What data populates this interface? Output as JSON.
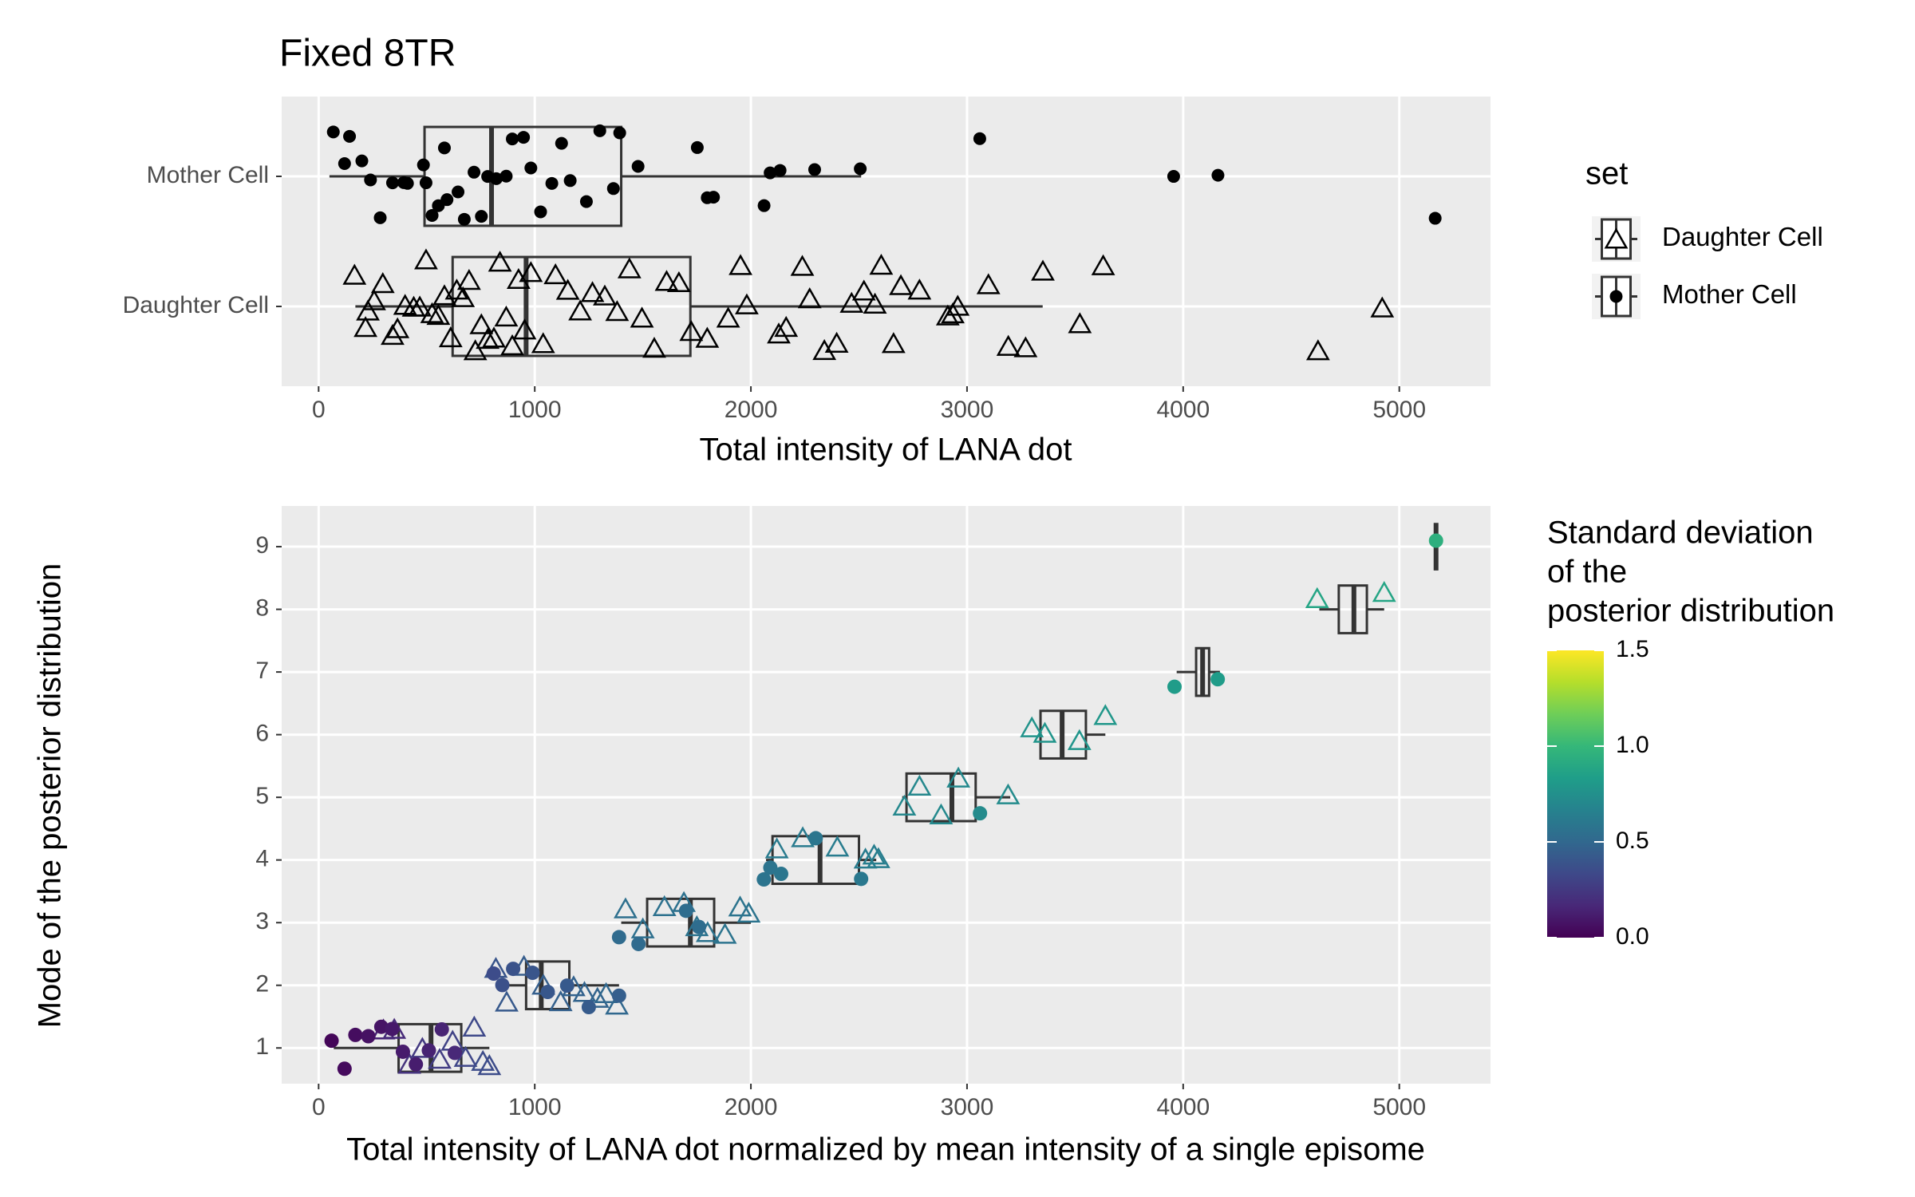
{
  "chart_data": [
    {
      "type": "boxplot",
      "title": "Fixed 8TR",
      "x_label": "Total intensity of LANA dot",
      "xlim": [
        -171,
        5422
      ],
      "xticks": [
        0,
        1000,
        2000,
        3000,
        4000,
        5000
      ],
      "categories": [
        "Daughter Cell",
        "Mother Cell"
      ],
      "shapes": [
        "triangle",
        "circle"
      ],
      "legend_title": "set",
      "grid": true,
      "boxes": [
        {
          "min": 170,
          "q1": 620,
          "median": 960,
          "q3": 1720,
          "max": 3350
        },
        {
          "min": 50,
          "q1": 490,
          "median": 800,
          "q3": 1400,
          "max": 2510
        }
      ],
      "points": [
        [
          166,
          217,
          228,
          257,
          297,
          342,
          365,
          400,
          440,
          468,
          497,
          525,
          554,
          582,
          611,
          639,
          668,
          696,
          725,
          753,
          782,
          811,
          839,
          868,
          896,
          925,
          953,
          982,
          1039,
          1096,
          1153,
          1210,
          1267,
          1324,
          1381,
          1438,
          1496,
          1553,
          1610,
          1667,
          1724,
          1798,
          1895,
          1952,
          1981,
          2129,
          2163,
          2238,
          2272,
          2340,
          2397,
          2466,
          2523,
          2574,
          2603,
          2660,
          2694,
          2780,
          2911,
          2934,
          2957,
          3099,
          3191,
          3271,
          3351,
          3522,
          3630,
          4624,
          4921
        ],
        [
          68,
          143,
          120,
          200,
          285,
          240,
          342,
          394,
          411,
          497,
          485,
          525,
          554,
          582,
          594,
          645,
          674,
          719,
          753,
          782,
          822,
          868,
          896,
          948,
          982,
          1027,
          1079,
          1124,
          1164,
          1239,
          1301,
          1364,
          1393,
          1478,
          1752,
          1798,
          1827,
          2061,
          2089,
          2135,
          2295,
          2506,
          3059,
          3956,
          4161,
          5166
        ]
      ]
    },
    {
      "type": "boxplot",
      "x_label": "Total intensity of LANA dot normalized by mean intensity of a single episome",
      "y_label": "Mode of the posterior distribution",
      "xlim": [
        -171,
        5422
      ],
      "xticks": [
        0,
        1000,
        2000,
        3000,
        4000,
        5000
      ],
      "ylim": [
        0.43,
        9.65
      ],
      "yticks": [
        1,
        2,
        3,
        4,
        5,
        6,
        7,
        8,
        9
      ],
      "grid": true,
      "boxes": [
        {
          "y": 1,
          "min": 70,
          "q1": 370,
          "median": 520,
          "q3": 660,
          "max": 790
        },
        {
          "y": 2,
          "min": 830,
          "q1": 960,
          "median": 1030,
          "q3": 1160,
          "max": 1390
        },
        {
          "y": 3,
          "min": 1400,
          "q1": 1520,
          "median": 1720,
          "q3": 1830,
          "max": 2000
        },
        {
          "y": 4,
          "min": 2070,
          "q1": 2100,
          "median": 2320,
          "q3": 2500,
          "max": 2580
        },
        {
          "y": 5,
          "min": 2700,
          "q1": 2720,
          "median": 2930,
          "q3": 3040,
          "max": 3200
        },
        {
          "y": 6,
          "min": 3330,
          "q1": 3340,
          "median": 3440,
          "q3": 3550,
          "max": 3640
        },
        {
          "y": 7,
          "min": 3970,
          "q1": 4060,
          "median": 4090,
          "q3": 4120,
          "max": 4170
        },
        {
          "y": 8,
          "min": 4630,
          "q1": 4720,
          "median": 4790,
          "q3": 4850,
          "max": 4930
        },
        {
          "y": 9,
          "min": 5170,
          "q1": 5170,
          "median": 5170,
          "q3": 5170,
          "max": 5170
        }
      ],
      "series": [
        {
          "shape": "triangle",
          "x": [
            300,
            350,
            420,
            480,
            560,
            620,
            680,
            720,
            760,
            790,
            820,
            870,
            950,
            1040,
            1120,
            1180,
            1230,
            1290,
            1330,
            1380,
            1420,
            1500,
            1600,
            1690,
            1750,
            1800,
            1880,
            1950,
            1990,
            2120,
            2240,
            2400,
            2530,
            2570,
            2590,
            2710,
            2780,
            2880,
            2960,
            3190,
            3300,
            3360,
            3520,
            3640,
            4620,
            4930
          ],
          "y": [
            1,
            1,
            1,
            1,
            1,
            1,
            1,
            1,
            1,
            1,
            2,
            2,
            2,
            2,
            2,
            2,
            2,
            2,
            2,
            2,
            3,
            3,
            3,
            3,
            3,
            3,
            3,
            3,
            3,
            4,
            4,
            4,
            4,
            4,
            4,
            5,
            5,
            5,
            5,
            5,
            6,
            6,
            6,
            6,
            8,
            8
          ],
          "sd": [
            0.15,
            0.18,
            0.22,
            0.25,
            0.27,
            0.3,
            0.32,
            0.33,
            0.35,
            0.35,
            0.4,
            0.42,
            0.44,
            0.45,
            0.46,
            0.47,
            0.48,
            0.48,
            0.5,
            0.5,
            0.55,
            0.55,
            0.56,
            0.56,
            0.57,
            0.57,
            0.58,
            0.58,
            0.58,
            0.62,
            0.62,
            0.63,
            0.63,
            0.64,
            0.64,
            0.7,
            0.7,
            0.71,
            0.71,
            0.72,
            0.77,
            0.78,
            0.78,
            0.79,
            0.88,
            0.88
          ]
        },
        {
          "shape": "circle",
          "x": [
            60,
            120,
            170,
            230,
            290,
            340,
            390,
            450,
            510,
            570,
            630,
            810,
            850,
            900,
            990,
            1060,
            1150,
            1250,
            1390,
            1390,
            1480,
            1700,
            1760,
            2060,
            2090,
            2140,
            2300,
            2510,
            3060,
            3960,
            4160,
            5170
          ],
          "y": [
            1,
            1,
            1,
            1,
            1,
            1,
            1,
            1,
            1,
            1,
            1,
            2,
            2,
            2,
            2,
            2,
            2,
            2,
            2,
            3,
            3,
            3,
            3,
            4,
            4,
            4,
            4,
            4,
            5,
            7,
            7,
            9
          ],
          "sd": [
            0.02,
            0.04,
            0.05,
            0.07,
            0.08,
            0.1,
            0.11,
            0.12,
            0.14,
            0.15,
            0.17,
            0.35,
            0.37,
            0.38,
            0.4,
            0.41,
            0.42,
            0.43,
            0.45,
            0.52,
            0.52,
            0.53,
            0.53,
            0.58,
            0.58,
            0.59,
            0.59,
            0.6,
            0.72,
            0.82,
            0.82,
            0.95
          ]
        }
      ],
      "colorbar": {
        "title_lines": [
          "Standard deviation",
          "of the",
          "posterior distribution"
        ],
        "lim": [
          0,
          1.5
        ],
        "ticks": [
          {
            "value": 0,
            "label": "0.0"
          },
          {
            "value": 0.5,
            "label": "0.5"
          },
          {
            "value": 1,
            "label": "1.0"
          },
          1.5
        ],
        "colors": [
          "#440154",
          "#482878",
          "#3e4989",
          "#31688e",
          "#26828e",
          "#1f9e89",
          "#35b779",
          "#6ece58",
          "#b5de2b",
          "#fde725"
        ]
      }
    }
  ]
}
